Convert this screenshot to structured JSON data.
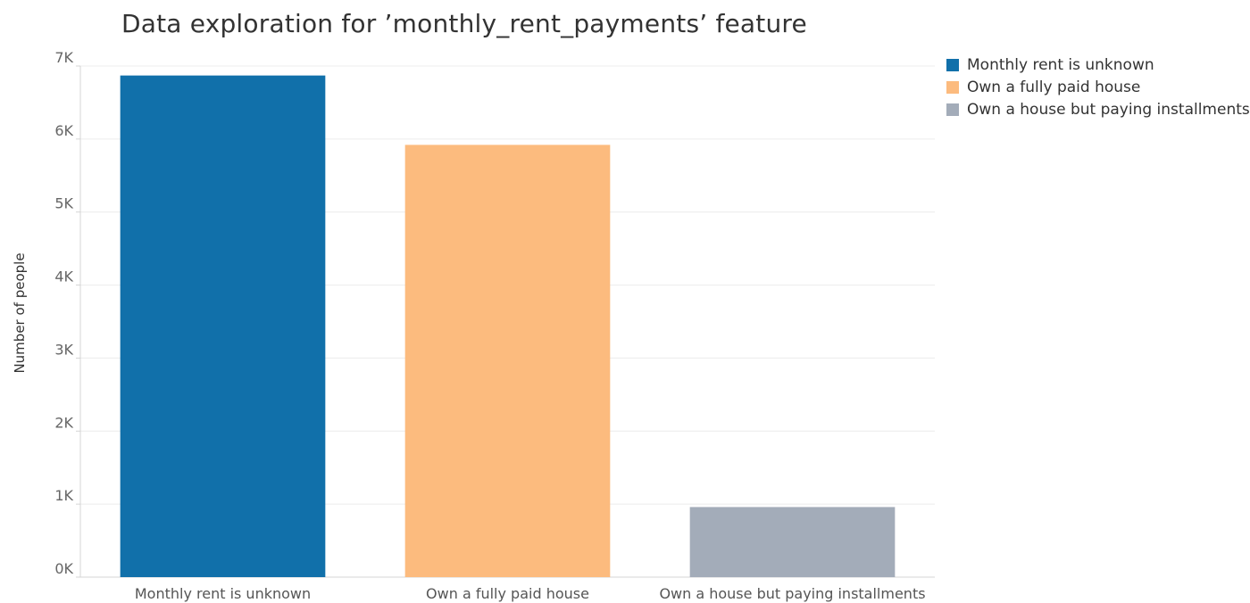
{
  "chart_data": {
    "type": "bar",
    "title": "Data exploration for ’monthly_rent_payments’ feature",
    "xlabel": "",
    "ylabel": "Number of people",
    "categories": [
      "Monthly rent is unknown",
      "Own a fully paid house",
      "Own a house but paying installments"
    ],
    "values": [
      6870,
      5920,
      960
    ],
    "colors": [
      "#1170aa",
      "#fcbb7e",
      "#a3acb9"
    ],
    "ylim": [
      0,
      7000
    ],
    "yticks": [
      0,
      1000,
      2000,
      3000,
      4000,
      5000,
      6000,
      7000
    ],
    "ytick_labels": [
      "0K",
      "1K",
      "2K",
      "3K",
      "4K",
      "5K",
      "6K",
      "7K"
    ],
    "grid": true,
    "legend": {
      "position": "top-right",
      "entries": [
        "Monthly rent is unknown",
        "Own a fully paid house",
        "Own a house but paying installments"
      ]
    }
  }
}
